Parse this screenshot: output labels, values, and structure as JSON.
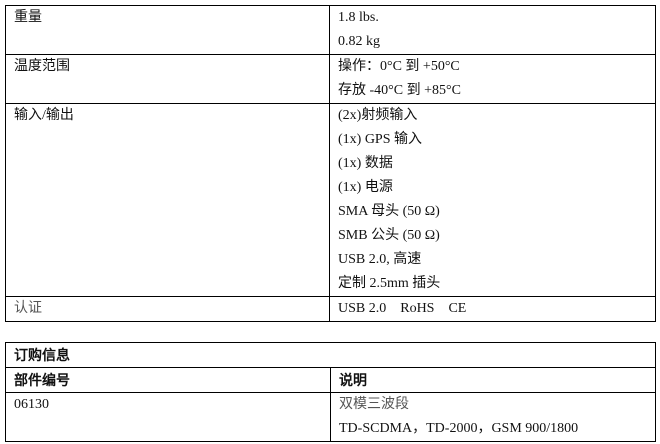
{
  "specs": [
    {
      "label": "重量",
      "values": [
        "1.8 lbs.",
        "0.82 kg"
      ]
    },
    {
      "label": "温度范围",
      "values": [
        "操作：0°C 到 +50°C",
        "存放 -40°C 到 +85°C"
      ]
    },
    {
      "label": "输入/输出",
      "values": [
        "(2x)射频输入",
        "(1x) GPS 输入",
        "(1x) 数据",
        "(1x) 电源",
        "SMA 母头 (50 Ω)",
        "SMB 公头 (50 Ω)",
        "USB 2.0, 高速",
        "定制 2.5mm 插头"
      ]
    },
    {
      "label": "认证",
      "values": [
        "USB 2.0　RoHS　CE"
      ]
    }
  ],
  "ordering": {
    "title": "订购信息",
    "headers": [
      "部件编号",
      "说明"
    ],
    "rows": [
      {
        "part": "06130",
        "desc": [
          "双模三波段",
          "TD-SCDMA，TD-2000，GSM 900/1800"
        ]
      }
    ]
  }
}
